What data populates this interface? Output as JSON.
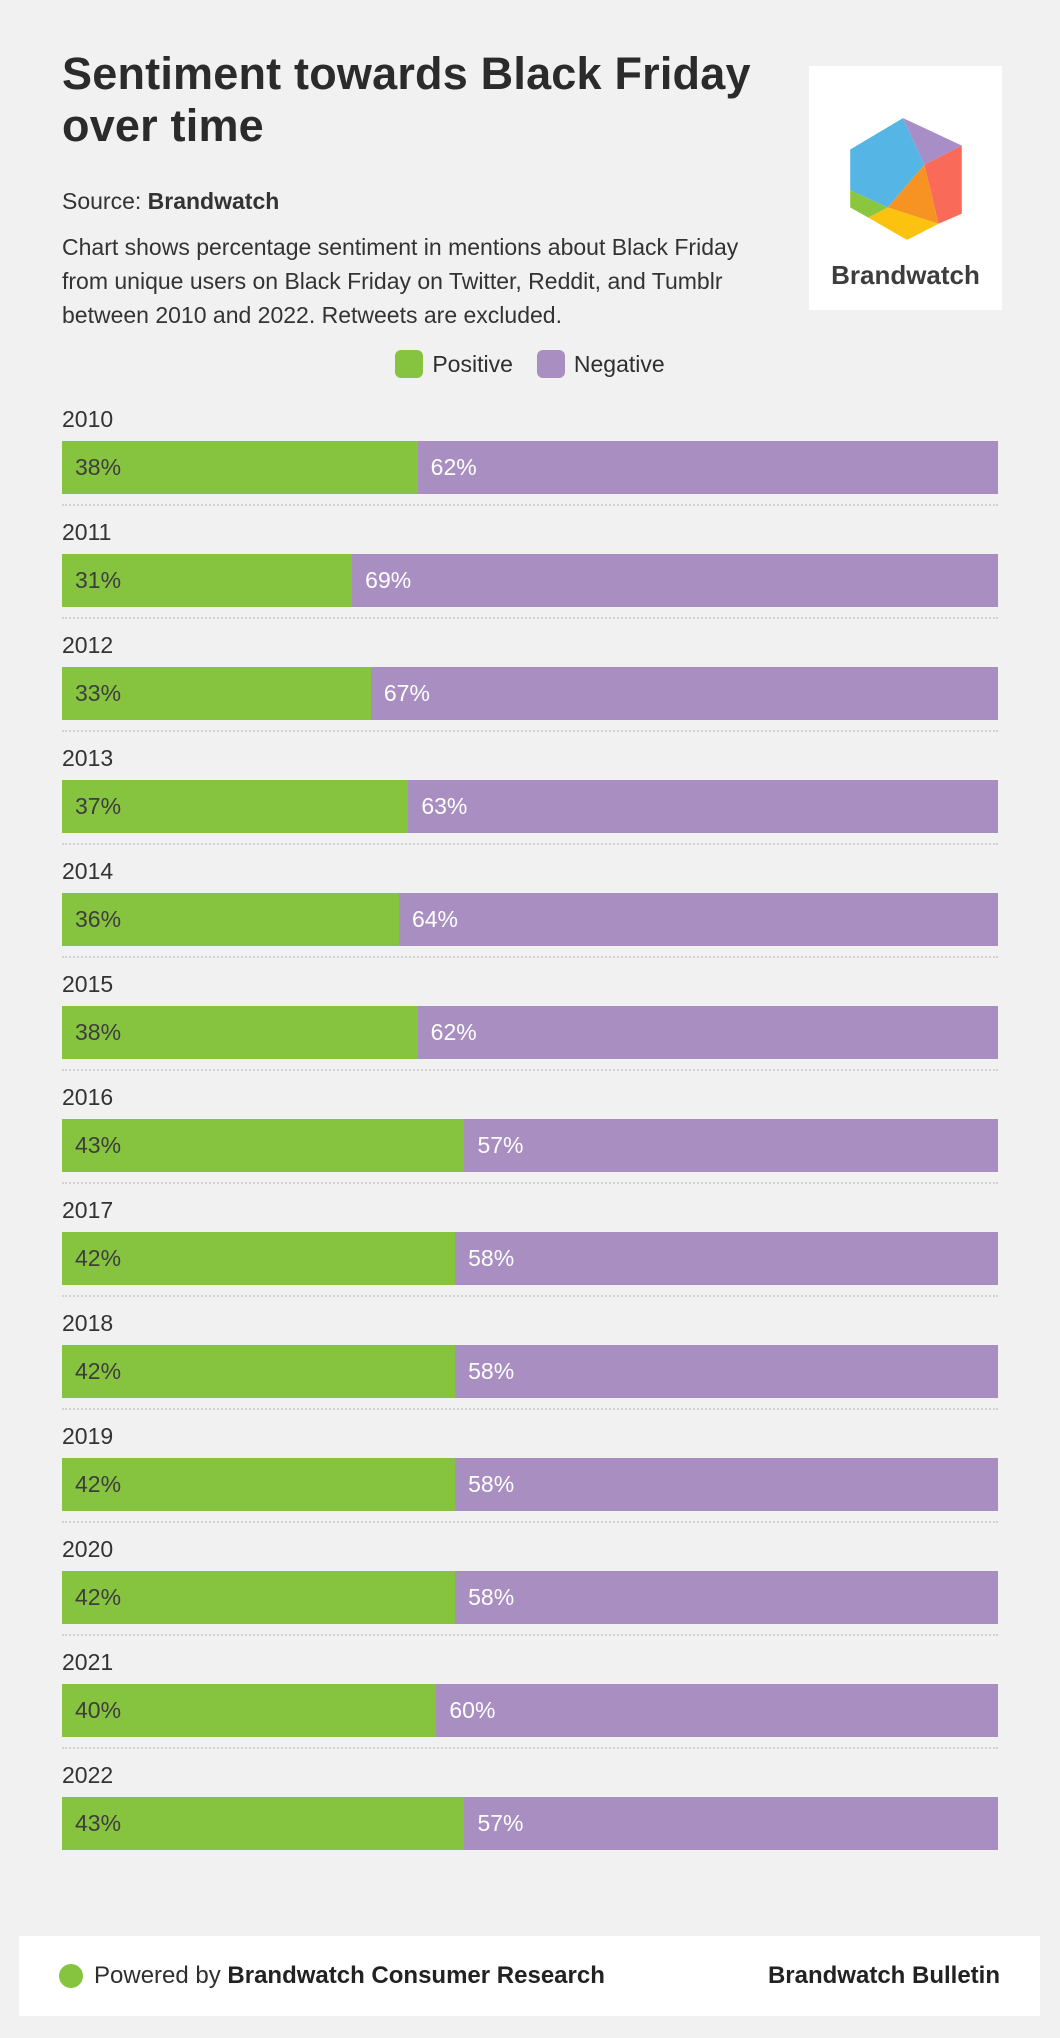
{
  "page": {
    "background": "#f2f1f1",
    "card_background": "#ffffff"
  },
  "header": {
    "title_line1": "Sentiment towards Black Friday",
    "title_line2": "over time",
    "source_label": "Source: ",
    "source_value": "Brandwatch",
    "description_lines": [
      "Chart shows percentage sentiment in mentions about Black Friday",
      "from unique users on Black Friday on Twitter, Reddit, and Tumblr",
      "between 2010 and 2022. Retweets are excluded."
    ]
  },
  "logo": {
    "brand_name": "Brandwatch",
    "colors": {
      "blue": "#55b5e5",
      "purple": "#a88ec6",
      "salmon": "#f96b58",
      "orange": "#f79322",
      "yellow": "#fcc210",
      "green": "#8bc63f"
    }
  },
  "chart_data": {
    "type": "bar",
    "orientation": "horizontal_stacked",
    "unit": "%",
    "xlim": [
      0,
      100
    ],
    "grid": false,
    "legend_position": "top-center",
    "categories": [
      "2010",
      "2011",
      "2012",
      "2013",
      "2014",
      "2015",
      "2016",
      "2017",
      "2018",
      "2019",
      "2020",
      "2021",
      "2022"
    ],
    "series": [
      {
        "name": "Positive",
        "color": "#86c440",
        "label_color": "#3d3d3d",
        "values": [
          38,
          31,
          33,
          37,
          36,
          38,
          43,
          42,
          42,
          42,
          42,
          40,
          43
        ]
      },
      {
        "name": "Negative",
        "color": "#a98fc1",
        "label_color": "#ffffff",
        "values": [
          62,
          69,
          67,
          63,
          64,
          62,
          57,
          58,
          58,
          58,
          58,
          60,
          57
        ]
      }
    ]
  },
  "footer": {
    "powered_prefix": "Powered by ",
    "powered_brand": "Brandwatch Consumer Research",
    "right_text": "Brandwatch Bulletin",
    "dot_color": "#86c440"
  }
}
